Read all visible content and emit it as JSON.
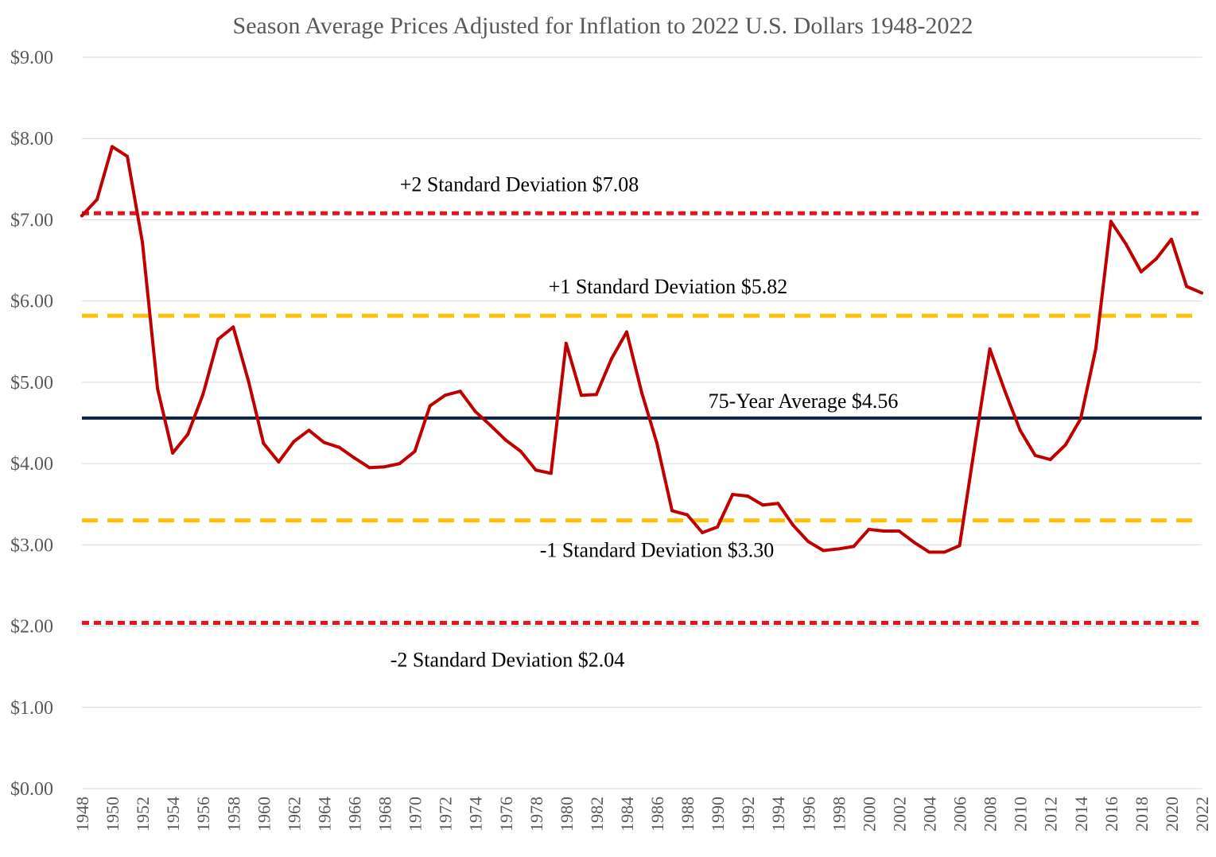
{
  "chart_data": {
    "type": "line",
    "title": "Season Average Prices Adjusted for Inflation to 2022 U.S. Dollars 1948-2022",
    "xlabel": "",
    "ylabel": "",
    "ylim": [
      0,
      9
    ],
    "y_ticks": [
      0,
      1,
      2,
      3,
      4,
      5,
      6,
      7,
      8,
      9
    ],
    "y_tick_labels": [
      "$0.00",
      "$1.00",
      "$2.00",
      "$3.00",
      "$4.00",
      "$5.00",
      "$6.00",
      "$7.00",
      "$8.00",
      "$9.00"
    ],
    "x_tick_labels": [
      "1948",
      "1950",
      "1952",
      "1954",
      "1956",
      "1958",
      "1960",
      "1962",
      "1964",
      "1966",
      "1968",
      "1970",
      "1972",
      "1974",
      "1976",
      "1978",
      "1980",
      "1982",
      "1984",
      "1986",
      "1988",
      "1990",
      "1992",
      "1994",
      "1996",
      "1998",
      "2000",
      "2002",
      "2004",
      "2006",
      "2008",
      "2010",
      "2012",
      "2014",
      "2016",
      "2018",
      "2020",
      "2022"
    ],
    "grid": true,
    "x": [
      1948,
      1949,
      1950,
      1951,
      1952,
      1953,
      1954,
      1955,
      1956,
      1957,
      1958,
      1959,
      1960,
      1961,
      1962,
      1963,
      1964,
      1965,
      1966,
      1967,
      1968,
      1969,
      1970,
      1971,
      1972,
      1973,
      1974,
      1975,
      1976,
      1977,
      1978,
      1979,
      1980,
      1981,
      1982,
      1983,
      1984,
      1985,
      1986,
      1987,
      1988,
      1989,
      1990,
      1991,
      1992,
      1993,
      1994,
      1995,
      1996,
      1997,
      1998,
      1999,
      2000,
      2001,
      2002,
      2003,
      2004,
      2005,
      2006,
      2007,
      2008,
      2009,
      2010,
      2011,
      2012,
      2013,
      2014,
      2015,
      2016,
      2017,
      2018,
      2019,
      2020,
      2021,
      2022
    ],
    "series": [
      {
        "color": "#c00000",
        "values": [
          7.05,
          7.25,
          7.9,
          7.78,
          6.72,
          4.92,
          4.13,
          4.36,
          4.85,
          5.53,
          5.68,
          5.02,
          4.25,
          4.02,
          4.27,
          4.41,
          4.26,
          4.2,
          4.07,
          3.95,
          3.96,
          4.0,
          4.15,
          4.71,
          4.84,
          4.89,
          4.64,
          4.47,
          4.29,
          4.15,
          3.92,
          3.88,
          5.48,
          4.84,
          4.85,
          5.29,
          5.62,
          4.87,
          4.25,
          3.42,
          3.37,
          3.15,
          3.22,
          3.62,
          3.6,
          3.49,
          3.51,
          3.24,
          3.04,
          2.93,
          2.95,
          2.98,
          3.19,
          3.17,
          3.17,
          3.03,
          2.91,
          2.91,
          2.99,
          4.21,
          5.41,
          4.89,
          4.41,
          4.1,
          4.05,
          4.23,
          4.55,
          5.41,
          6.98,
          6.7,
          6.36,
          6.52,
          6.76,
          6.18,
          6.1
        ]
      }
    ],
    "reference_lines": [
      {
        "value": 7.08,
        "label": "+2 Standard Deviation $7.08",
        "color": "#e8141c",
        "style": "dotted"
      },
      {
        "value": 5.82,
        "label": "+1 Standard Deviation $5.82",
        "color": "#ffc000",
        "style": "dashed"
      },
      {
        "value": 4.56,
        "label": "75-Year Average $4.56",
        "color": "#0d2340",
        "style": "solid"
      },
      {
        "value": 3.3,
        "label": "-1 Standard Deviation $3.30",
        "color": "#ffc000",
        "style": "dashed"
      },
      {
        "value": 2.04,
        "label": "-2 Standard Deviation $2.04",
        "color": "#e8141c",
        "style": "dotted"
      }
    ]
  }
}
